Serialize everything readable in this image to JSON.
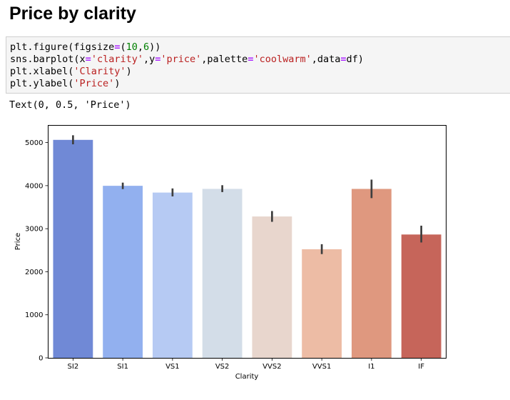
{
  "notebook": {
    "heading": "Price by clarity",
    "code": {
      "line1": {
        "a": "plt.figure(figsize",
        "b": "=",
        "c": "(",
        "d": "10",
        "e": ",",
        "f": "6",
        "g": "))"
      },
      "line2": {
        "a": "sns.barplot(x",
        "b": "=",
        "c": "'clarity'",
        "d": ",y",
        "e": "=",
        "f": "'price'",
        "g": ",palette",
        "h": "=",
        "i": "'coolwarm'",
        "j": ",data",
        "k": "=",
        "l": "df)"
      },
      "line3": {
        "a": "plt.xlabel(",
        "b": "'Clarity'",
        "c": ")"
      },
      "line4": {
        "a": "plt.ylabel(",
        "b": "'Price'",
        "c": ")"
      }
    },
    "output_text": "Text(0, 0.5, 'Price')"
  },
  "chart_data": {
    "type": "bar",
    "xlabel": "Clarity",
    "ylabel": "Price",
    "ylim": [
      0,
      5400
    ],
    "yticks": [
      0,
      1000,
      2000,
      3000,
      4000,
      5000
    ],
    "grid": false,
    "categories": [
      "SI2",
      "SI1",
      "VS1",
      "VS2",
      "VVS2",
      "VVS1",
      "I1",
      "IF"
    ],
    "values": [
      5063,
      3996,
      3839,
      3925,
      3284,
      2523,
      3924,
      2865
    ],
    "ci_low": [
      4960,
      3920,
      3750,
      3850,
      3160,
      2410,
      3710,
      2680
    ],
    "ci_high": [
      5170,
      4070,
      3935,
      4010,
      3410,
      2640,
      4140,
      3070
    ],
    "colors": [
      "#7089d6",
      "#92b0ef",
      "#b6caf3",
      "#d3dde8",
      "#e8d6cd",
      "#edbca5",
      "#df987f",
      "#c6655a"
    ],
    "error_bar_color": "#3f3f3f"
  }
}
